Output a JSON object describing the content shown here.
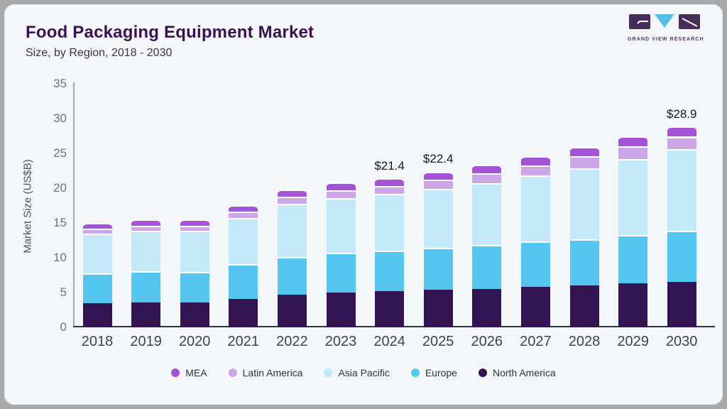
{
  "header": {
    "title": "Food Packaging Equipment Market",
    "subtitle": "Size, by Region, 2018 - 2030"
  },
  "logo": {
    "text": "GRAND VIEW RESEARCH",
    "block_color": "#442e59",
    "triangle_color": "#56bfe8"
  },
  "chart_data": {
    "type": "bar",
    "stacked": true,
    "title": "Food Packaging Equipment Market Size, by Region, 2018 - 2030",
    "xlabel": "",
    "ylabel": "Market Size (US$B)",
    "ylim": [
      0,
      35
    ],
    "yticks": [
      0,
      5,
      10,
      15,
      20,
      25,
      30,
      35
    ],
    "grid": false,
    "legend_position": "bottom",
    "categories": [
      "2018",
      "2019",
      "2020",
      "2021",
      "2022",
      "2023",
      "2024",
      "2025",
      "2026",
      "2027",
      "2028",
      "2029",
      "2030"
    ],
    "series": [
      {
        "name": "North America",
        "color": "#321453",
        "values": [
          3.5,
          3.6,
          3.6,
          4.1,
          4.7,
          5.0,
          5.2,
          5.4,
          5.5,
          5.8,
          6.0,
          6.3,
          6.5
        ]
      },
      {
        "name": "Europe",
        "color": "#55c6f0",
        "values": [
          4.3,
          4.5,
          4.4,
          5.0,
          5.4,
          5.7,
          5.8,
          6.0,
          6.3,
          6.5,
          6.7,
          7.0,
          7.4
        ]
      },
      {
        "name": "Asia Pacific",
        "color": "#c4e9f9",
        "values": [
          5.7,
          5.8,
          5.9,
          6.6,
          7.7,
          7.9,
          8.2,
          8.5,
          8.9,
          9.5,
          10.2,
          10.9,
          11.7
        ]
      },
      {
        "name": "Latin America",
        "color": "#cda6e8",
        "values": [
          0.7,
          0.7,
          0.7,
          0.9,
          1.0,
          1.1,
          1.1,
          1.3,
          1.4,
          1.5,
          1.7,
          1.8,
          1.8
        ]
      },
      {
        "name": "MEA",
        "color": "#a452d6",
        "values": [
          0.8,
          0.9,
          0.9,
          1.0,
          1.0,
          1.1,
          1.1,
          1.2,
          1.3,
          1.3,
          1.3,
          1.4,
          1.5
        ]
      }
    ],
    "totals": [
      15.0,
      15.5,
      15.5,
      17.6,
      19.8,
      20.8,
      21.4,
      22.4,
      23.4,
      24.6,
      25.9,
      27.4,
      28.9
    ],
    "annotations": [
      {
        "category": "2024",
        "text": "$21.4"
      },
      {
        "category": "2025",
        "text": "$22.4"
      },
      {
        "category": "2030",
        "text": "$28.9"
      }
    ],
    "legend": [
      {
        "label": "MEA",
        "color": "#a452d6"
      },
      {
        "label": "Latin America",
        "color": "#cda6e8"
      },
      {
        "label": "Asia Pacific",
        "color": "#c4e9f9"
      },
      {
        "label": "Europe",
        "color": "#55c6f0"
      },
      {
        "label": "North America",
        "color": "#321453"
      }
    ]
  }
}
